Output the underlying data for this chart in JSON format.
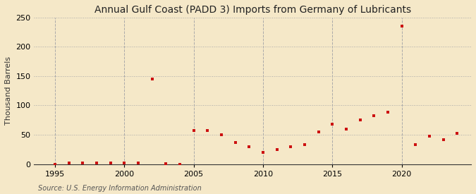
{
  "title": "Annual Gulf Coast (PADD 3) Imports from Germany of Lubricants",
  "ylabel": "Thousand Barrels",
  "source": "Source: U.S. Energy Information Administration",
  "background_color": "#f5e8c8",
  "marker_color": "#cc1111",
  "years": [
    1995,
    1996,
    1997,
    1998,
    1999,
    2000,
    2001,
    2002,
    2003,
    2004,
    2005,
    2006,
    2007,
    2008,
    2009,
    2010,
    2011,
    2012,
    2013,
    2014,
    2015,
    2016,
    2017,
    2018,
    2019,
    2020,
    2021,
    2022,
    2023,
    2024
  ],
  "values": [
    0,
    2,
    2,
    2,
    2,
    2,
    2,
    145,
    1,
    0,
    57,
    57,
    50,
    37,
    29,
    20,
    25,
    30,
    33,
    55,
    68,
    60,
    75,
    83,
    88,
    235,
    33,
    48,
    42,
    52
  ],
  "xlim": [
    1993.5,
    2025
  ],
  "ylim": [
    0,
    250
  ],
  "yticks": [
    0,
    50,
    100,
    150,
    200,
    250
  ],
  "xticks": [
    1995,
    2000,
    2005,
    2010,
    2015,
    2020
  ],
  "title_fontsize": 10,
  "label_fontsize": 8,
  "tick_fontsize": 8,
  "source_fontsize": 7,
  "marker_size": 8
}
